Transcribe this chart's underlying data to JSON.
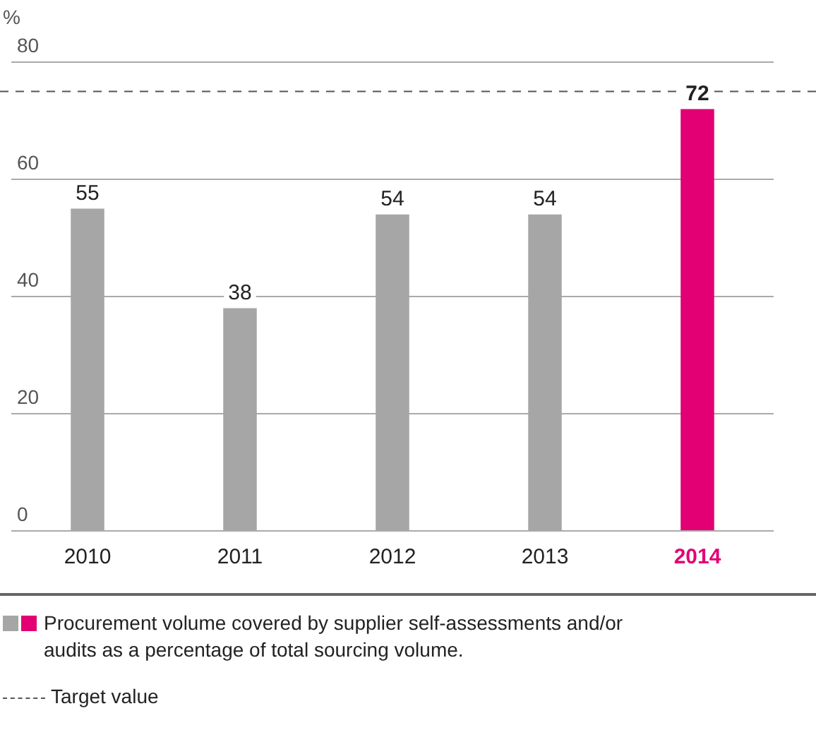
{
  "chart_data": {
    "type": "bar",
    "ylabel": "%",
    "categories": [
      "2010",
      "2011",
      "2012",
      "2013",
      "2014"
    ],
    "series": [
      {
        "name": "Procurement volume covered by supplier self-assessments and/or audits as a percentage of total sourcing volume.",
        "colors": [
          "#a6a6a6",
          "#a6a6a6",
          "#a6a6a6",
          "#a6a6a6",
          "#e20074"
        ],
        "values": [
          55,
          38,
          54,
          54,
          72
        ]
      }
    ],
    "ylim": [
      0,
      80
    ],
    "yticks": [
      0,
      20,
      40,
      60,
      80
    ],
    "grid": "y",
    "data_labels": true,
    "legend": "bottom",
    "ref_lines": [
      {
        "axis": "y",
        "value": 75,
        "label": "Target value",
        "line_style": "dashed",
        "color": "#555555"
      }
    ]
  }
}
